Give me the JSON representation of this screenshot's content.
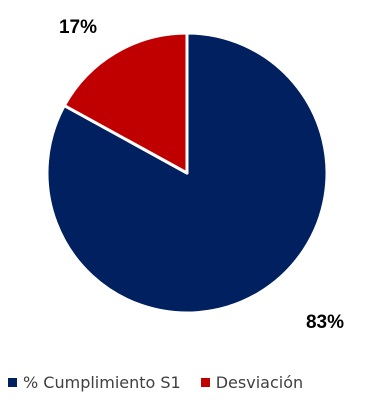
{
  "chart_data": {
    "type": "pie",
    "categories": [
      "% Cumplimiento S1",
      "Desviación"
    ],
    "values": [
      83,
      17
    ],
    "value_unit": "%",
    "data_labels": [
      "83%",
      "17%"
    ],
    "colors": [
      "#002060",
      "#C00000"
    ],
    "slice_border_color": "#ffffff",
    "start_angle": "12 o'clock",
    "direction": "clockwise",
    "legend": {
      "position": "bottom",
      "entries": [
        "% Cumplimiento S1",
        "Desviación"
      ]
    }
  }
}
